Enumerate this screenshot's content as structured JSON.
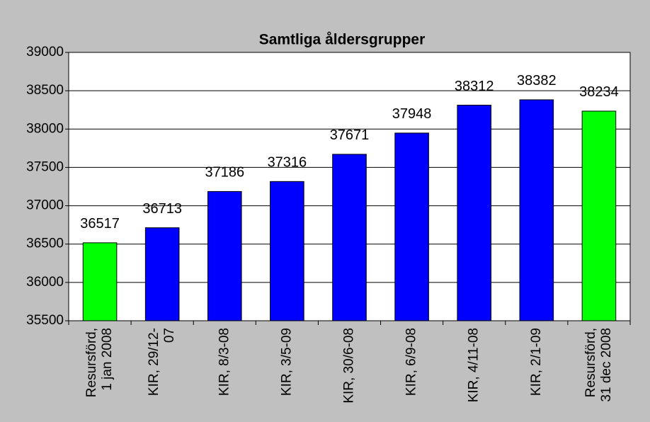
{
  "chart_data": {
    "type": "bar",
    "title": "Samtliga åldersgrupper",
    "categories": [
      "Resursförd,\n1 jan 2008",
      "KIR, 29/12-\n07",
      "KIR, 8/3-08",
      "KIR, 3/5-09",
      "KIR, 30/6-08",
      "KIR, 6/9-08",
      "KIR, 4/11-08",
      "KIR, 2/1-09",
      "Resursförd,\n31 dec 2008"
    ],
    "values": [
      36517,
      36713,
      37186,
      37316,
      37671,
      37948,
      38312,
      38382,
      38234
    ],
    "colors": [
      "#00ff00",
      "#0000ff",
      "#0000ff",
      "#0000ff",
      "#0000ff",
      "#0000ff",
      "#0000ff",
      "#0000ff",
      "#00ff00"
    ],
    "ylim": [
      35500,
      39000
    ],
    "yticks": [
      35500,
      36000,
      36500,
      37000,
      37500,
      38000,
      38500,
      39000
    ],
    "grid": true
  }
}
